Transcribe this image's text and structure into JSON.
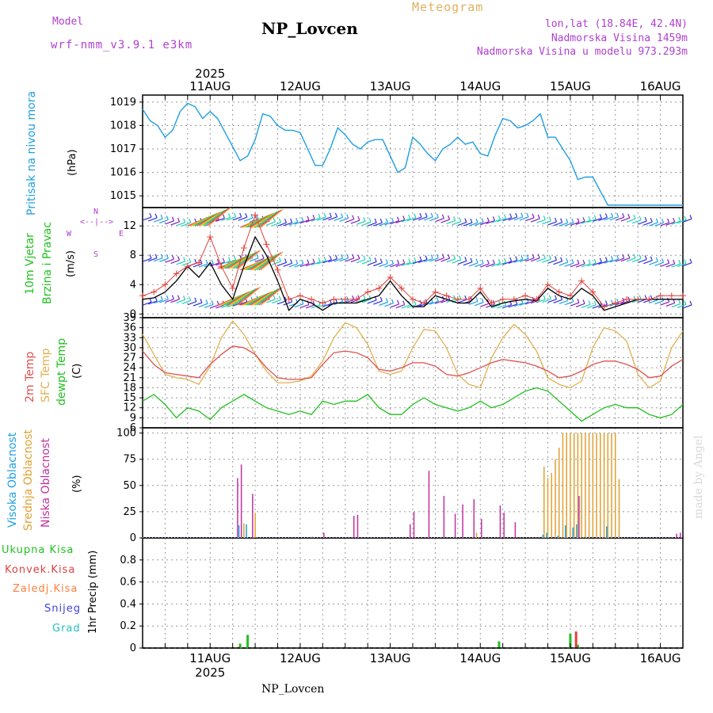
{
  "header": {
    "model_label": "Model",
    "model_name": "wrf-nmm_v3.9.1  e3km",
    "meteogram_label": "Meteogram",
    "station": "NP_Lovcen",
    "lonlat": "lon,lat (18.84E, 42.4N)",
    "elevation": "Nadmorska Visina 1459m",
    "model_elevation": "Nadmorska Visina u modelu 973.293m"
  },
  "footer": {
    "station": "NP_Lovcen",
    "credit": "made by Angel"
  },
  "time_axis": {
    "year": "2025",
    "date_labels": [
      "11AUG",
      "12AUG",
      "13AUG",
      "14AUG",
      "15AUG",
      "16AUG"
    ],
    "range_hours": [
      0,
      144
    ],
    "tick_every_hours": 6
  },
  "colors": {
    "pressure": "#1e9fe0",
    "wind_speed": "#000000",
    "gust": "#e0403a",
    "temp2m": "#e05050",
    "sfc_temp": "#e0b050",
    "dewpoint": "#20c020",
    "high_cloud": "#20a0e0",
    "mid_cloud": "#e0a030",
    "low_cloud": "#c030a0",
    "total_precip": "#20c020",
    "conv_precip": "#e04040",
    "frozen_precip": "#ff8040",
    "snow": "#4040e0",
    "hail": "#20c0c0",
    "grid": "#999999"
  },
  "labels": {
    "pressure_title": "Pritisak na nivou mora",
    "pressure_unit": "(hPa)",
    "wind_title_1": "10m Vjetar",
    "wind_title_2": "Brzina i Pravac",
    "wind_unit": "(m/s)",
    "compass_n": "N",
    "compass_w": "W",
    "compass_e": "E",
    "compass_s": "S",
    "temp_2m": "2m Temp",
    "temp_sfc": "SFC Temp",
    "temp_dew": "dewpt Temp",
    "temp_unit": "(C)",
    "cloud_high": "Visoka Oblacnost",
    "cloud_mid": "Srednja Oblacnost",
    "cloud_low": "Niska Oblacnost",
    "cloud_unit": "(%)",
    "precip_total": "Ukupna Kisa",
    "precip_conv": "Konvek.Kisa",
    "precip_frozen": "Zaledj.Kisa",
    "precip_snow": "Snijeg",
    "precip_hail": "Grad",
    "precip_unit": "1hr Precip (mm)"
  },
  "chart_data": [
    {
      "type": "line",
      "title": "Pritisak na nivou mora",
      "ylabel": "(hPa)",
      "ylim": [
        1014.5,
        1019.3
      ],
      "yticks": [
        1015,
        1016,
        1017,
        1018,
        1019
      ],
      "x_hours": [
        0,
        2,
        4,
        6,
        8,
        10,
        12,
        14,
        16,
        18,
        20,
        22,
        24,
        26,
        28,
        30,
        32,
        34,
        36,
        38,
        40,
        42,
        44,
        46,
        48,
        50,
        52,
        54,
        56,
        58,
        60,
        62,
        64,
        66,
        68,
        70,
        72,
        74,
        76,
        78,
        80,
        82,
        84,
        86,
        88,
        90,
        92,
        94,
        96,
        98,
        100,
        102,
        104,
        106,
        108,
        110,
        112,
        114,
        116,
        118,
        120,
        122,
        124,
        126,
        128,
        130,
        132,
        134,
        136,
        138,
        140,
        142,
        144
      ],
      "series": [
        {
          "name": "MSLP",
          "values": [
            1018.7,
            1018.2,
            1018.0,
            1017.5,
            1017.8,
            1018.6,
            1018.95,
            1018.8,
            1018.3,
            1018.6,
            1018.3,
            1017.7,
            1017.1,
            1016.5,
            1016.7,
            1017.4,
            1018.5,
            1018.4,
            1018.0,
            1017.8,
            1017.8,
            1017.7,
            1017.0,
            1016.3,
            1016.3,
            1017.0,
            1017.9,
            1017.6,
            1017.2,
            1017.0,
            1017.3,
            1017.4,
            1017.4,
            1016.7,
            1016.0,
            1016.2,
            1017.5,
            1017.2,
            1016.8,
            1016.5,
            1017.0,
            1017.2,
            1017.5,
            1017.2,
            1017.3,
            1016.8,
            1016.7,
            1017.6,
            1018.3,
            1018.2,
            1017.9,
            1018.0,
            1018.2,
            1018.5,
            1017.5,
            1017.5,
            1017.0,
            1016.5,
            1015.7,
            1015.8,
            1015.8,
            1015.2,
            1014.6,
            1014.6,
            1014.6,
            1014.6,
            1014.6,
            1014.6,
            1014.6,
            1014.6,
            1014.6,
            1014.6,
            1014.6
          ]
        }
      ]
    },
    {
      "type": "line",
      "title": "10m Vjetar Brzina i Pravac",
      "ylabel": "(m/s)",
      "ylim": [
        -0.5,
        14.5
      ],
      "yticks": [
        0,
        4,
        8,
        12
      ],
      "x_hours": [
        0,
        3,
        6,
        9,
        12,
        15,
        18,
        21,
        24,
        27,
        30,
        33,
        36,
        39,
        42,
        45,
        48,
        51,
        54,
        57,
        60,
        63,
        66,
        69,
        72,
        75,
        78,
        81,
        84,
        87,
        90,
        93,
        96,
        99,
        102,
        105,
        108,
        111,
        114,
        117,
        120,
        123,
        126,
        129,
        132,
        135,
        138,
        141,
        144
      ],
      "series": [
        {
          "name": "Brzina vjetra",
          "values": [
            2.0,
            2.2,
            3.0,
            4.5,
            6.5,
            5.0,
            7.0,
            4.0,
            2.0,
            6.5,
            10.5,
            8.0,
            4.5,
            0.5,
            2.0,
            1.5,
            0.5,
            1.5,
            1.5,
            1.5,
            2.0,
            2.5,
            4.5,
            2.5,
            1.0,
            1.0,
            2.5,
            2.0,
            1.5,
            1.5,
            3.0,
            1.0,
            1.5,
            1.8,
            2.0,
            1.8,
            3.5,
            2.5,
            2.0,
            3.5,
            2.5,
            0.5,
            1.0,
            1.5,
            2.0,
            2.0,
            2.0,
            2.0,
            2.0
          ]
        },
        {
          "name": "Udari vjetra",
          "values": [
            2.5,
            3.0,
            4.0,
            5.5,
            6.5,
            7.0,
            10.5,
            6.5,
            3.5,
            9.0,
            13.5,
            9.5,
            6.0,
            2.0,
            2.5,
            2.0,
            1.5,
            2.0,
            2.0,
            2.0,
            3.0,
            3.5,
            5.0,
            3.5,
            2.0,
            1.5,
            3.0,
            2.5,
            2.0,
            2.0,
            3.5,
            1.5,
            2.0,
            2.0,
            2.5,
            2.0,
            4.0,
            3.0,
            2.5,
            4.5,
            3.0,
            1.0,
            1.5,
            2.0,
            2.0,
            2.0,
            2.5,
            2.5,
            2.5
          ]
        }
      ]
    },
    {
      "type": "line",
      "title": "2m Temp / SFC Temp / dewpt Temp",
      "ylabel": "(C)",
      "ylim": [
        6,
        39
      ],
      "yticks": [
        6,
        9,
        12,
        15,
        18,
        21,
        24,
        27,
        30,
        33,
        36,
        39
      ],
      "x_hours": [
        0,
        3,
        6,
        9,
        12,
        15,
        18,
        21,
        24,
        27,
        30,
        33,
        36,
        39,
        42,
        45,
        48,
        51,
        54,
        57,
        60,
        63,
        66,
        69,
        72,
        75,
        78,
        81,
        84,
        87,
        90,
        93,
        96,
        99,
        102,
        105,
        108,
        111,
        114,
        117,
        120,
        123,
        126,
        129,
        132,
        135,
        138,
        141,
        144
      ],
      "series": [
        {
          "name": "2m Temp",
          "values": [
            29,
            25,
            22.5,
            22,
            21.5,
            21,
            25,
            28,
            30.5,
            30,
            28,
            24,
            21,
            20.5,
            20.5,
            21,
            25,
            28.5,
            29,
            28.5,
            27,
            23.5,
            23,
            24,
            25.5,
            25.5,
            24.5,
            22,
            21.5,
            22.5,
            24,
            25.5,
            26.5,
            26,
            25.5,
            24.5,
            23,
            21,
            21.5,
            23,
            25,
            26,
            26,
            25,
            23.5,
            21,
            21.5,
            24.5,
            26.5
          ]
        },
        {
          "name": "SFC Temp",
          "values": [
            34,
            28,
            22,
            21,
            20.5,
            19,
            24.5,
            33,
            38,
            34,
            28,
            23,
            19.5,
            19.5,
            20,
            21.5,
            26,
            33,
            37.5,
            36,
            31,
            23,
            22,
            23,
            30,
            35.5,
            35,
            30,
            22,
            19,
            18,
            27,
            33,
            37,
            34,
            29,
            21,
            19,
            18,
            20,
            30,
            36,
            35,
            32,
            22,
            18,
            20,
            30,
            35
          ]
        },
        {
          "name": "dewpt Temp",
          "values": [
            14,
            16,
            13,
            9,
            12,
            11,
            8.5,
            12,
            14,
            16,
            14,
            12,
            11,
            10,
            11,
            10,
            14,
            13,
            14,
            14,
            16,
            12,
            10,
            10,
            13,
            15,
            13,
            12,
            11,
            12,
            14,
            12,
            13,
            15,
            17,
            18,
            17,
            14,
            11,
            8,
            10,
            12,
            13,
            12,
            12,
            10,
            9,
            10,
            13
          ]
        }
      ]
    },
    {
      "type": "bar",
      "title": "Visoka / Srednja / Niska Oblacnost",
      "ylabel": "(%)",
      "ylim": [
        0,
        105
      ],
      "yticks": [
        0,
        25,
        50,
        75,
        100
      ],
      "series": [
        {
          "name": "Visoka Oblacnost",
          "points": [
            [
              26,
              12
            ],
            [
              28,
              13
            ],
            [
              107,
              3
            ],
            [
              108,
              5
            ],
            [
              111,
              2
            ],
            [
              113,
              12
            ],
            [
              115,
              10
            ],
            [
              116,
              13
            ],
            [
              124,
              11
            ]
          ]
        },
        {
          "name": "Srednja Oblacnost",
          "points": [
            [
              27,
              14
            ],
            [
              30,
              24
            ],
            [
              89,
              5
            ],
            [
              107,
              68
            ],
            [
              108,
              57
            ],
            [
              109,
              62
            ],
            [
              110,
              75
            ],
            [
              111,
              86
            ],
            [
              112,
              100
            ],
            [
              113,
              100
            ],
            [
              114,
              100
            ],
            [
              115,
              100
            ],
            [
              116,
              100
            ],
            [
              117,
              100
            ],
            [
              118,
              100
            ],
            [
              119,
              100
            ],
            [
              120,
              100
            ],
            [
              121,
              100
            ],
            [
              122,
              100
            ],
            [
              123,
              100
            ],
            [
              124,
              100
            ],
            [
              125,
              100
            ],
            [
              126,
              100
            ],
            [
              127,
              56
            ]
          ]
        },
        {
          "name": "Niska Oblacnost",
          "points": [
            [
              25,
              57
            ],
            [
              26,
              70
            ],
            [
              29,
              42
            ],
            [
              45,
              1
            ],
            [
              48,
              5
            ],
            [
              56,
              21
            ],
            [
              57,
              22
            ],
            [
              71,
              13
            ],
            [
              72,
              25
            ],
            [
              76,
              64
            ],
            [
              80,
              40
            ],
            [
              83,
              23
            ],
            [
              85,
              32
            ],
            [
              88,
              37
            ],
            [
              90,
              18
            ],
            [
              95,
              31
            ],
            [
              96,
              24
            ],
            [
              99,
              15
            ],
            [
              116,
              40
            ],
            [
              142,
              4
            ],
            [
              143,
              5
            ]
          ]
        }
      ]
    },
    {
      "type": "bar",
      "title": "1hr Precip",
      "ylabel": "1hr Precip (mm)",
      "ylim": [
        0,
        1.0
      ],
      "yticks": [
        0,
        0.2,
        0.4,
        0.6,
        0.8
      ],
      "series": [
        {
          "name": "Ukupna Kisa",
          "points": [
            [
              26,
              0.04
            ],
            [
              28,
              0.12
            ],
            [
              95,
              0.06
            ],
            [
              114,
              0.13
            ],
            [
              116,
              0.03
            ]
          ]
        },
        {
          "name": "Konvek.Kisa",
          "points": [
            [
              25,
              0.01
            ],
            [
              115,
              0.15
            ]
          ]
        }
      ]
    }
  ]
}
